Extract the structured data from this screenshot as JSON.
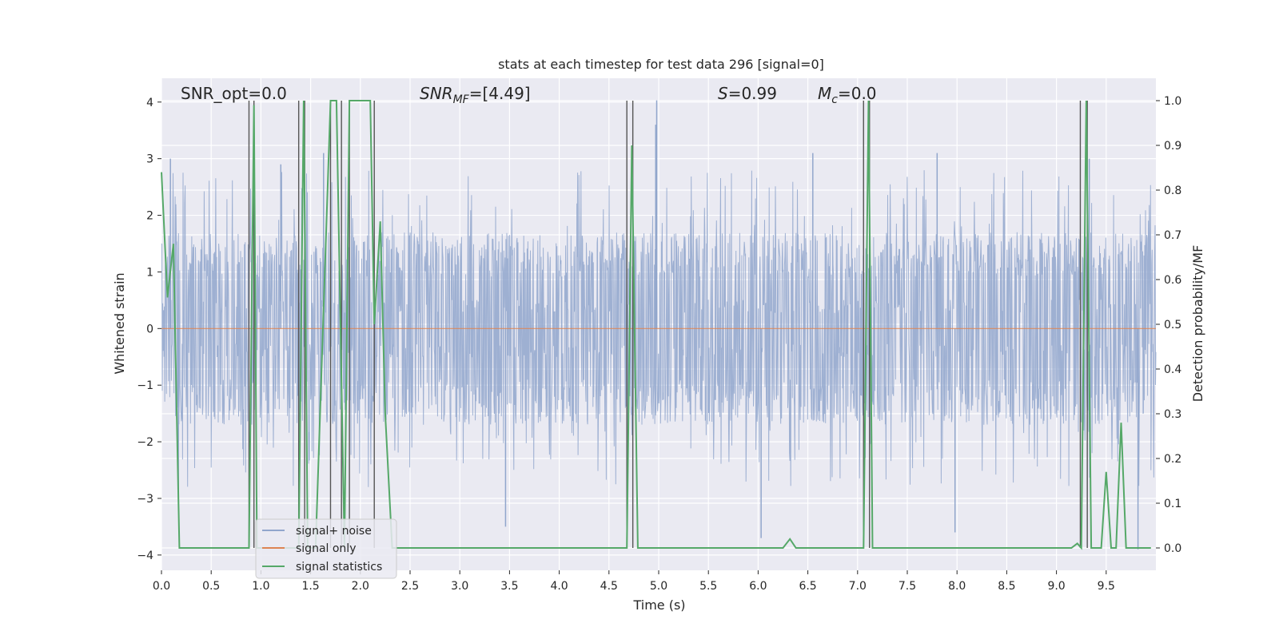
{
  "chart_data": {
    "type": "line",
    "title": "stats at each timestep for test data 296 [signal=0]",
    "xlabel": "Time (s)",
    "ylabel_left": "Whitened strain",
    "ylabel_right": "Detection probability/MF",
    "xlim": [
      0.0,
      10.0
    ],
    "ylim_left": [
      -4.27,
      4.42
    ],
    "ylim_right": [
      -0.05,
      1.05
    ],
    "x_ticks": [
      "0.0",
      "0.5",
      "1.0",
      "1.5",
      "2.0",
      "2.5",
      "3.0",
      "3.5",
      "4.0",
      "4.5",
      "5.0",
      "5.5",
      "6.0",
      "6.5",
      "7.0",
      "7.5",
      "8.0",
      "8.5",
      "9.0",
      "9.5"
    ],
    "y_ticks_left": [
      "−4",
      "−3",
      "−2",
      "−1",
      "0",
      "1",
      "2",
      "3",
      "4"
    ],
    "y_ticks_right": [
      "0.0",
      "0.1",
      "0.2",
      "0.3",
      "0.4",
      "0.5",
      "0.6",
      "0.7",
      "0.8",
      "0.9",
      "1.0"
    ],
    "grid": true,
    "legend_position": "lower-left",
    "annotations": {
      "snr_opt": "SNR_opt=0.0",
      "snr_mf_main": "SNR",
      "snr_mf_sub": "MF",
      "snr_mf_val": "=[4.49]",
      "s_main": "S",
      "s_val": "=0.99",
      "mc_main": "M",
      "mc_sub": "c",
      "mc_val": "=0.0"
    },
    "series": [
      {
        "name": "signal+ noise",
        "color": "#91a6cc",
        "axis": "left",
        "description_level": "noise band ~ -1.7..1.7 with spikes up to ~±4",
        "peaks": [
          {
            "x": 0.09,
            "y": 3.0
          },
          {
            "x": 0.93,
            "y": 2.7
          },
          {
            "x": 1.2,
            "y": 2.9
          },
          {
            "x": 1.63,
            "y": 3.1
          },
          {
            "x": 4.98,
            "y": 4.03
          },
          {
            "x": 4.97,
            "y": 3.6
          },
          {
            "x": 6.55,
            "y": 3.1
          },
          {
            "x": 7.8,
            "y": 3.1
          },
          {
            "x": 9.33,
            "y": 3.0
          },
          {
            "x": 6.03,
            "y": -3.7
          },
          {
            "x": 7.98,
            "y": -3.6
          },
          {
            "x": 9.82,
            "y": -3.9
          },
          {
            "x": 3.46,
            "y": -3.5
          },
          {
            "x": 0.17,
            "y": -3.0
          }
        ]
      },
      {
        "name": "signal only",
        "color": "#dd8452",
        "axis": "left",
        "values_constant": 0.0
      },
      {
        "name": "signal statistics",
        "color": "#55a868",
        "axis": "right",
        "x": [
          0.0,
          0.06,
          0.12,
          0.18,
          0.88,
          0.93,
          0.96,
          1.02,
          1.38,
          1.43,
          1.47,
          1.55,
          1.7,
          1.76,
          1.84,
          1.89,
          1.94,
          2.0,
          2.05,
          2.1,
          2.14,
          2.2,
          2.25,
          2.32,
          4.68,
          4.73,
          4.79,
          6.25,
          6.32,
          6.38,
          7.06,
          7.11,
          7.15,
          7.21,
          9.15,
          9.21,
          9.25,
          9.3,
          9.35,
          9.4,
          9.45,
          9.5,
          9.55,
          9.6,
          9.65,
          9.7,
          9.75,
          9.8,
          9.85,
          9.9,
          9.95
        ],
        "y": [
          0.84,
          0.56,
          0.68,
          0.0,
          0.0,
          0.99,
          0.0,
          0.0,
          0.0,
          1.0,
          0.0,
          0.0,
          1.0,
          1.0,
          0.0,
          1.0,
          1.0,
          1.0,
          1.0,
          1.0,
          0.5,
          0.73,
          0.3,
          0.0,
          0.0,
          0.9,
          0.0,
          0.0,
          0.02,
          0.0,
          0.0,
          1.0,
          0.0,
          0.0,
          0.0,
          0.01,
          0.0,
          1.0,
          0.0,
          0.0,
          0.0,
          0.17,
          0.0,
          0.0,
          0.28,
          0.0,
          0.0,
          0.0,
          0.0,
          0.0,
          0.0
        ]
      }
    ],
    "vertical_lines": [
      0.88,
      0.93,
      1.38,
      1.44,
      1.7,
      1.81,
      1.89,
      2.14,
      4.68,
      4.74,
      7.06,
      7.12,
      9.24,
      9.31
    ],
    "vertical_line_color": "#555555"
  }
}
